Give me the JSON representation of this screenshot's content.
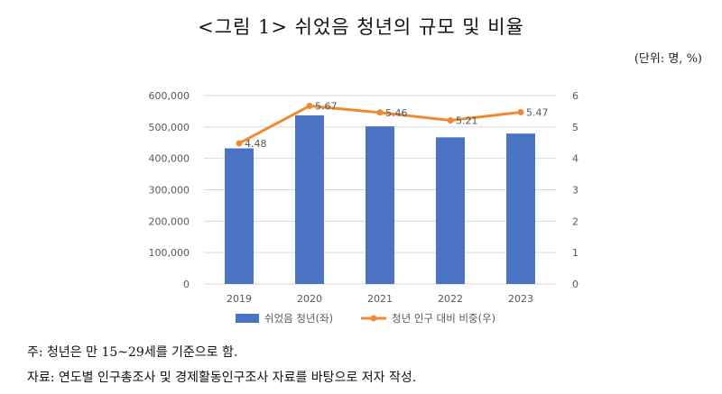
{
  "title": "<그림 1> 쉬었음 청년의 규모 및 비율",
  "unit_label": "(단위: 명, %)",
  "notes": {
    "note": "주: 청년은 만 15~29세를 기준으로 함.",
    "source": "자료: 연도별 인구총조사 및 경제활동인구조사 자료를 바탕으로 저자 작성."
  },
  "colors": {
    "bar": "#4a73c4",
    "line": "#f08a32",
    "grid": "#d9d9d9",
    "axis_text": "#595959"
  },
  "chart_data": {
    "type": "bar",
    "categories": [
      "2019",
      "2020",
      "2021",
      "2022",
      "2023"
    ],
    "series": [
      {
        "name": "쉬었음 청년(좌)",
        "type": "bar",
        "axis": "left",
        "values": [
          432000,
          537000,
          502000,
          467000,
          479000
        ]
      },
      {
        "name": "청년 인구 대비 비중(우)",
        "type": "line",
        "axis": "right",
        "values": [
          4.48,
          5.67,
          5.46,
          5.21,
          5.47
        ],
        "labels": [
          "4.48",
          "5.67",
          "5.46",
          "5.21",
          "5.47"
        ]
      }
    ],
    "y_left": {
      "range": [
        0,
        600000
      ],
      "ticks": [
        "0",
        "100,000",
        "200,000",
        "300,000",
        "400,000",
        "500,000",
        "600,000"
      ]
    },
    "y_right": {
      "range": [
        0,
        6
      ],
      "ticks": [
        "0",
        "1",
        "2",
        "3",
        "4",
        "5",
        "6"
      ]
    },
    "grid": true,
    "legend_position": "bottom"
  }
}
